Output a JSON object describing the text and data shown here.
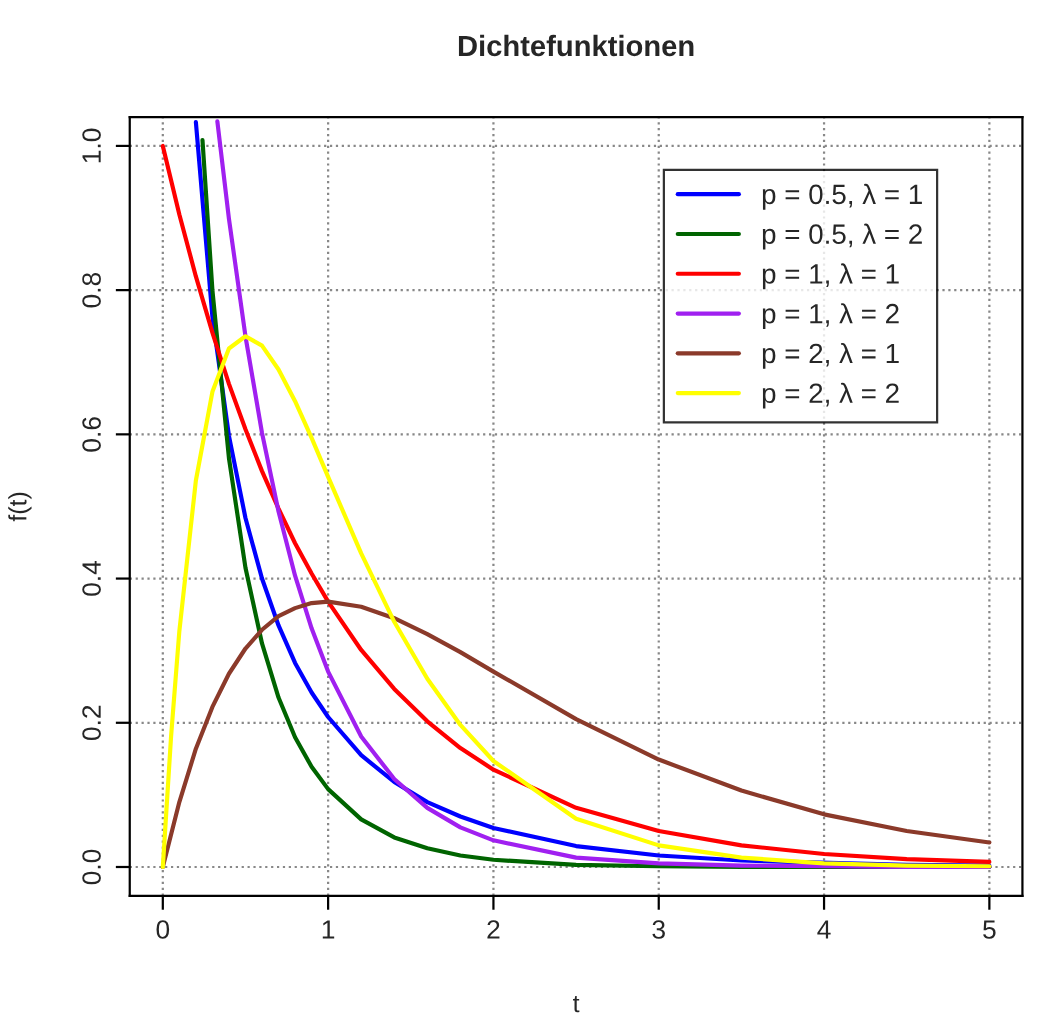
{
  "chart_data": {
    "type": "line",
    "title": "Dichtefunktionen",
    "xlabel": "t",
    "ylabel": "f(t)",
    "xlim": [
      -0.2,
      5.2
    ],
    "ylim": [
      -0.04,
      1.04
    ],
    "xticks": [
      0,
      1,
      2,
      3,
      4,
      5
    ],
    "yticks": [
      {
        "value": 0,
        "label": "0.0"
      },
      0.2,
      0.4,
      0.6,
      0.8,
      {
        "value": 1,
        "label": "1.0"
      }
    ],
    "grid": true,
    "legend": "top right",
    "line_style": "solid",
    "marker": "none",
    "series": [
      {
        "name": "p = 0.5, λ = 1",
        "color": "#0000ff",
        "x": [
          0.2,
          0.3,
          0.4,
          0.5,
          0.6,
          0.7,
          0.8,
          0.9,
          1,
          1.2,
          1.4,
          1.6,
          1.8,
          2,
          2.5,
          3,
          3.5,
          4.5,
          5
        ],
        "values": [
          1.033,
          0.763,
          0.598,
          0.484,
          0.4,
          0.335,
          0.283,
          0.242,
          0.208,
          0.155,
          0.118,
          0.09,
          0.07,
          0.054,
          0.029,
          0.016,
          0.009,
          0.003,
          0.002
        ]
      },
      {
        "name": "p = 0.5, λ = 2",
        "color": "#006400",
        "x": [
          0.24,
          0.3,
          0.4,
          0.5,
          0.6,
          0.7,
          0.8,
          0.9,
          1,
          1.2,
          1.4,
          1.6,
          1.8,
          2,
          2.5,
          3,
          3.5,
          4,
          4.5,
          5
        ],
        "values": [
          1.008,
          0.8,
          0.567,
          0.415,
          0.31,
          0.235,
          0.18,
          0.139,
          0.108,
          0.066,
          0.041,
          0.026,
          0.016,
          0.01,
          0.003,
          0.001,
          0,
          0,
          0,
          0
        ]
      },
      {
        "name": "p = 1, λ = 1",
        "color": "#ff0000",
        "x": [
          0,
          0.1,
          0.2,
          0.3,
          0.4,
          0.5,
          0.6,
          0.7,
          0.8,
          0.9,
          1,
          1.2,
          1.4,
          1.6,
          1.8,
          2,
          2.5,
          3,
          3.5,
          4,
          4.5,
          5
        ],
        "values": [
          1,
          0.905,
          0.819,
          0.741,
          0.67,
          0.607,
          0.549,
          0.497,
          0.449,
          0.407,
          0.368,
          0.301,
          0.247,
          0.202,
          0.165,
          0.135,
          0.082,
          0.05,
          0.03,
          0.018,
          0.011,
          0.007
        ]
      },
      {
        "name": "p = 1, λ = 2",
        "color": "#a020f0",
        "x": [
          0.33,
          0.4,
          0.5,
          0.6,
          0.7,
          0.8,
          0.9,
          1,
          1.2,
          1.4,
          1.6,
          1.8,
          2,
          2.5,
          3,
          3.5,
          4,
          4.5,
          5
        ],
        "values": [
          1.034,
          0.899,
          0.736,
          0.602,
          0.493,
          0.404,
          0.331,
          0.271,
          0.181,
          0.122,
          0.082,
          0.055,
          0.037,
          0.013,
          0.005,
          0.002,
          0.001,
          0,
          0
        ]
      },
      {
        "name": "p = 2, λ = 1",
        "color": "#8b3a2a",
        "x": [
          0,
          0.1,
          0.2,
          0.3,
          0.4,
          0.5,
          0.6,
          0.7,
          0.8,
          0.9,
          1,
          1.2,
          1.4,
          1.6,
          1.8,
          2,
          2.5,
          3,
          3.5,
          4,
          4.5,
          5
        ],
        "values": [
          0,
          0.09,
          0.164,
          0.222,
          0.268,
          0.303,
          0.329,
          0.348,
          0.359,
          0.366,
          0.368,
          0.361,
          0.345,
          0.323,
          0.298,
          0.271,
          0.205,
          0.149,
          0.106,
          0.073,
          0.05,
          0.034
        ]
      },
      {
        "name": "p = 2, λ = 2",
        "color": "#ffff00",
        "x": [
          0,
          0.05,
          0.1,
          0.2,
          0.3,
          0.4,
          0.5,
          0.6,
          0.7,
          0.8,
          0.9,
          1,
          1.2,
          1.4,
          1.6,
          1.8,
          2,
          2.5,
          3,
          3.5,
          4,
          4.5,
          5
        ],
        "values": [
          0,
          0.181,
          0.327,
          0.536,
          0.659,
          0.719,
          0.736,
          0.723,
          0.69,
          0.646,
          0.595,
          0.541,
          0.435,
          0.34,
          0.261,
          0.197,
          0.147,
          0.067,
          0.03,
          0.013,
          0.005,
          0.002,
          0.001
        ]
      }
    ]
  }
}
